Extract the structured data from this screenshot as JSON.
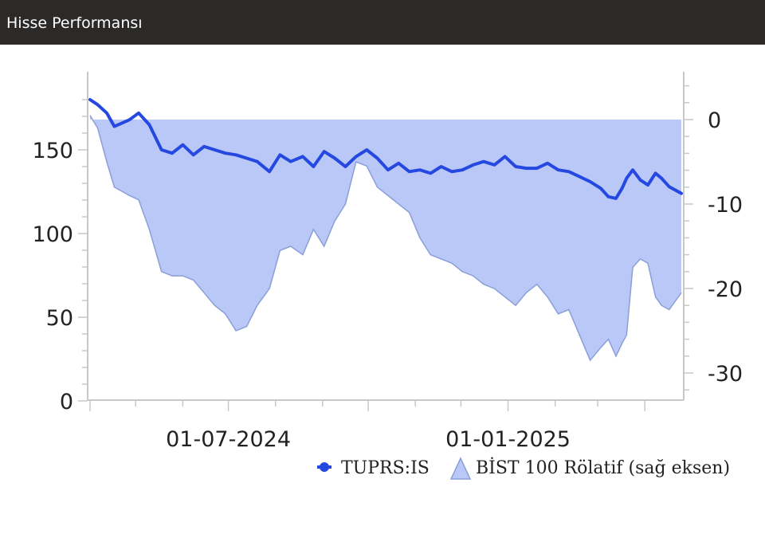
{
  "header": {
    "title": "Hisse Performansı"
  },
  "colors": {
    "header_bg": "#2b2a29",
    "stock_line": "#2549e0",
    "relative_fill": "#b9c8f6",
    "relative_stroke": "#8a9fd8",
    "axis": "#c8c8c8"
  },
  "chart_data": {
    "type": "line",
    "x_type": "date",
    "x_range": [
      "2024-04-01",
      "2025-04-25"
    ],
    "x_ticks": [
      {
        "date": "2024-07-01",
        "label": "01-07-2024"
      },
      {
        "date": "2025-01-01",
        "label": "01-01-2025"
      }
    ],
    "y_left": {
      "range": [
        0,
        190
      ],
      "ticks": [
        0,
        50,
        100,
        150
      ]
    },
    "y_right": {
      "range": [
        -33,
        4.5
      ],
      "ticks": [
        0,
        -10,
        -20,
        -30
      ]
    },
    "grid": false,
    "legend": {
      "position": "bottom-right",
      "items": [
        "TUPRS:IS",
        "BİST 100 Rölatif (sağ eksen)"
      ]
    },
    "series": [
      {
        "name": "TUPRS:IS",
        "axis": "left",
        "style": "line",
        "x": [
          "2024-04-01",
          "2024-04-06",
          "2024-04-12",
          "2024-04-17",
          "2024-04-22",
          "2024-04-27",
          "2024-05-03",
          "2024-05-10",
          "2024-05-18",
          "2024-05-25",
          "2024-06-01",
          "2024-06-08",
          "2024-06-15",
          "2024-06-22",
          "2024-06-29",
          "2024-07-06",
          "2024-07-13",
          "2024-07-20",
          "2024-07-28",
          "2024-08-04",
          "2024-08-11",
          "2024-08-19",
          "2024-08-26",
          "2024-09-02",
          "2024-09-09",
          "2024-09-16",
          "2024-09-23",
          "2024-09-30",
          "2024-10-07",
          "2024-10-14",
          "2024-10-21",
          "2024-10-28",
          "2024-11-04",
          "2024-11-11",
          "2024-11-18",
          "2024-11-25",
          "2024-12-02",
          "2024-12-09",
          "2024-12-16",
          "2024-12-23",
          "2024-12-30",
          "2025-01-06",
          "2025-01-13",
          "2025-01-20",
          "2025-01-27",
          "2025-02-03",
          "2025-02-10",
          "2025-02-17",
          "2025-02-24",
          "2025-03-03",
          "2025-03-08",
          "2025-03-13",
          "2025-03-17",
          "2025-03-20",
          "2025-03-24",
          "2025-03-29",
          "2025-04-03",
          "2025-04-08",
          "2025-04-12",
          "2025-04-17",
          "2025-04-25"
        ],
        "values": [
          180,
          177,
          172,
          164,
          166,
          168,
          172,
          165,
          150,
          148,
          153,
          147,
          152,
          150,
          148,
          147,
          145,
          143,
          137,
          147,
          143,
          146,
          140,
          149,
          145,
          140,
          146,
          150,
          145,
          138,
          142,
          137,
          138,
          136,
          140,
          137,
          138,
          141,
          143,
          141,
          146,
          140,
          139,
          139,
          142,
          138,
          137,
          134,
          131,
          127,
          122,
          121,
          127,
          133,
          138,
          132,
          129,
          136,
          133,
          128,
          124
        ]
      },
      {
        "name": "BİST 100 Rölatif (sağ eksen)",
        "axis": "right",
        "style": "area",
        "x": [
          "2024-04-01",
          "2024-04-06",
          "2024-04-12",
          "2024-04-17",
          "2024-04-22",
          "2024-04-27",
          "2024-05-03",
          "2024-05-10",
          "2024-05-18",
          "2024-05-25",
          "2024-06-01",
          "2024-06-08",
          "2024-06-15",
          "2024-06-22",
          "2024-06-29",
          "2024-07-06",
          "2024-07-13",
          "2024-07-20",
          "2024-07-28",
          "2024-08-04",
          "2024-08-11",
          "2024-08-19",
          "2024-08-26",
          "2024-09-02",
          "2024-09-09",
          "2024-09-16",
          "2024-09-23",
          "2024-09-30",
          "2024-10-07",
          "2024-10-14",
          "2024-10-21",
          "2024-10-28",
          "2024-11-04",
          "2024-11-11",
          "2024-11-18",
          "2024-11-25",
          "2024-12-02",
          "2024-12-09",
          "2024-12-16",
          "2024-12-23",
          "2024-12-30",
          "2025-01-06",
          "2025-01-13",
          "2025-01-20",
          "2025-01-27",
          "2025-02-03",
          "2025-02-10",
          "2025-02-17",
          "2025-02-24",
          "2025-03-03",
          "2025-03-08",
          "2025-03-13",
          "2025-03-17",
          "2025-03-20",
          "2025-03-24",
          "2025-03-29",
          "2025-04-03",
          "2025-04-08",
          "2025-04-12",
          "2025-04-17",
          "2025-04-25"
        ],
        "values": [
          0.5,
          -1,
          -5,
          -8,
          -8.5,
          -9,
          -9.5,
          -13,
          -18,
          -18.5,
          -18.5,
          -19,
          -20.5,
          -22,
          -23,
          -25,
          -24.5,
          -22,
          -20,
          -15.5,
          -15,
          -16,
          -13,
          -15,
          -12,
          -10,
          -5,
          -5.5,
          -8,
          -9,
          -10,
          -11,
          -14,
          -16,
          -16.5,
          -17,
          -18,
          -18.5,
          -19.5,
          -20,
          -21,
          -22,
          -20.5,
          -19.5,
          -21,
          -23,
          -22.5,
          -25.5,
          -28.5,
          -27,
          -26,
          -28,
          -26.5,
          -25.5,
          -17.5,
          -16.5,
          -17,
          -21,
          -22,
          -22.5,
          -20.5
        ]
      }
    ]
  }
}
